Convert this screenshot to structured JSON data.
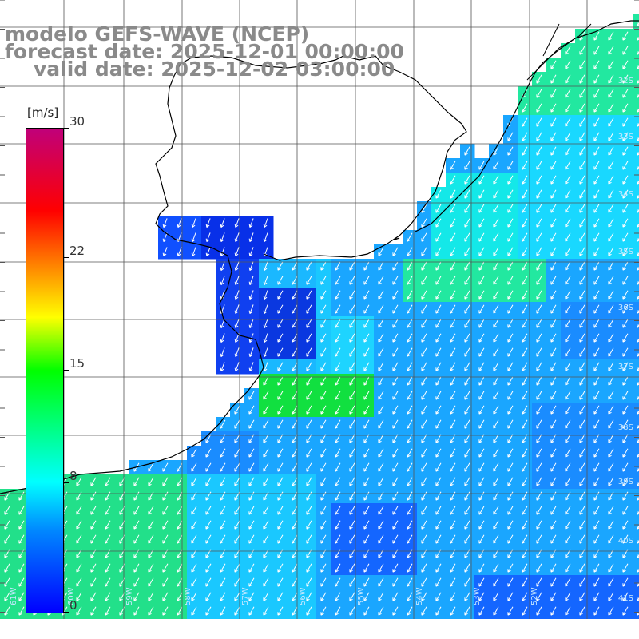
{
  "title": {
    "model": "modelo GEFS-WAVE (NCEP)",
    "forecast": "forecast date: 2025-12-01 00:00:00",
    "valid": "valid date: 2025-12-02 03:00:00"
  },
  "colorbar": {
    "unit": "[m/s]",
    "ticks": [
      {
        "label": "30",
        "value": 30
      },
      {
        "label": "22",
        "value": 22
      },
      {
        "label": "15",
        "value": 15
      },
      {
        "label": "8",
        "value": 8
      },
      {
        "label": "0",
        "value": 0
      }
    ],
    "min": 0,
    "max": 30
  },
  "map_labels": {
    "lat": [
      "32S",
      "33S",
      "34S",
      "35S",
      "36S",
      "37S",
      "38S",
      "39S",
      "40S",
      "41S"
    ],
    "lon": [
      "61W",
      "60W",
      "59W",
      "58W",
      "57W",
      "56W",
      "55W",
      "54W",
      "53W",
      "52W"
    ]
  },
  "colors": {
    "background": "#ffffff",
    "land": "#ffffff",
    "title_text": "#8a8a8a",
    "grid": "#555555",
    "coast": "#000000",
    "arrow": "#ffffff"
  }
}
